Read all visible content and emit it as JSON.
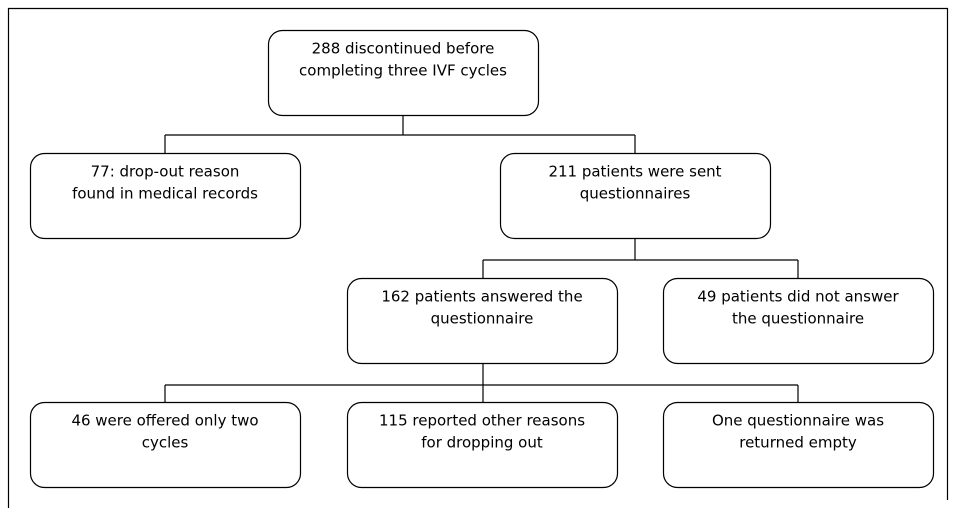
{
  "nodes": [
    {
      "lines": [
        "288 discontinued before",
        "completing three IVF cycles"
      ]
    },
    {
      "lines": [
        "77: drop-out reason",
        "found in medical records"
      ]
    },
    {
      "lines": [
        "211 patients were sent",
        "questionnaires"
      ]
    },
    {
      "lines": [
        "162 patients answered the",
        "questionnaire"
      ]
    },
    {
      "lines": [
        "49 patients did not answer",
        "the questionnaire"
      ]
    },
    {
      "lines": [
        "46 were offered only two",
        "cycles"
      ]
    },
    {
      "lines": [
        "115 reported other reasons",
        "for dropping out"
      ]
    },
    {
      "lines": [
        "One questionnaire was",
        "returned empty"
      ]
    }
  ]
}
